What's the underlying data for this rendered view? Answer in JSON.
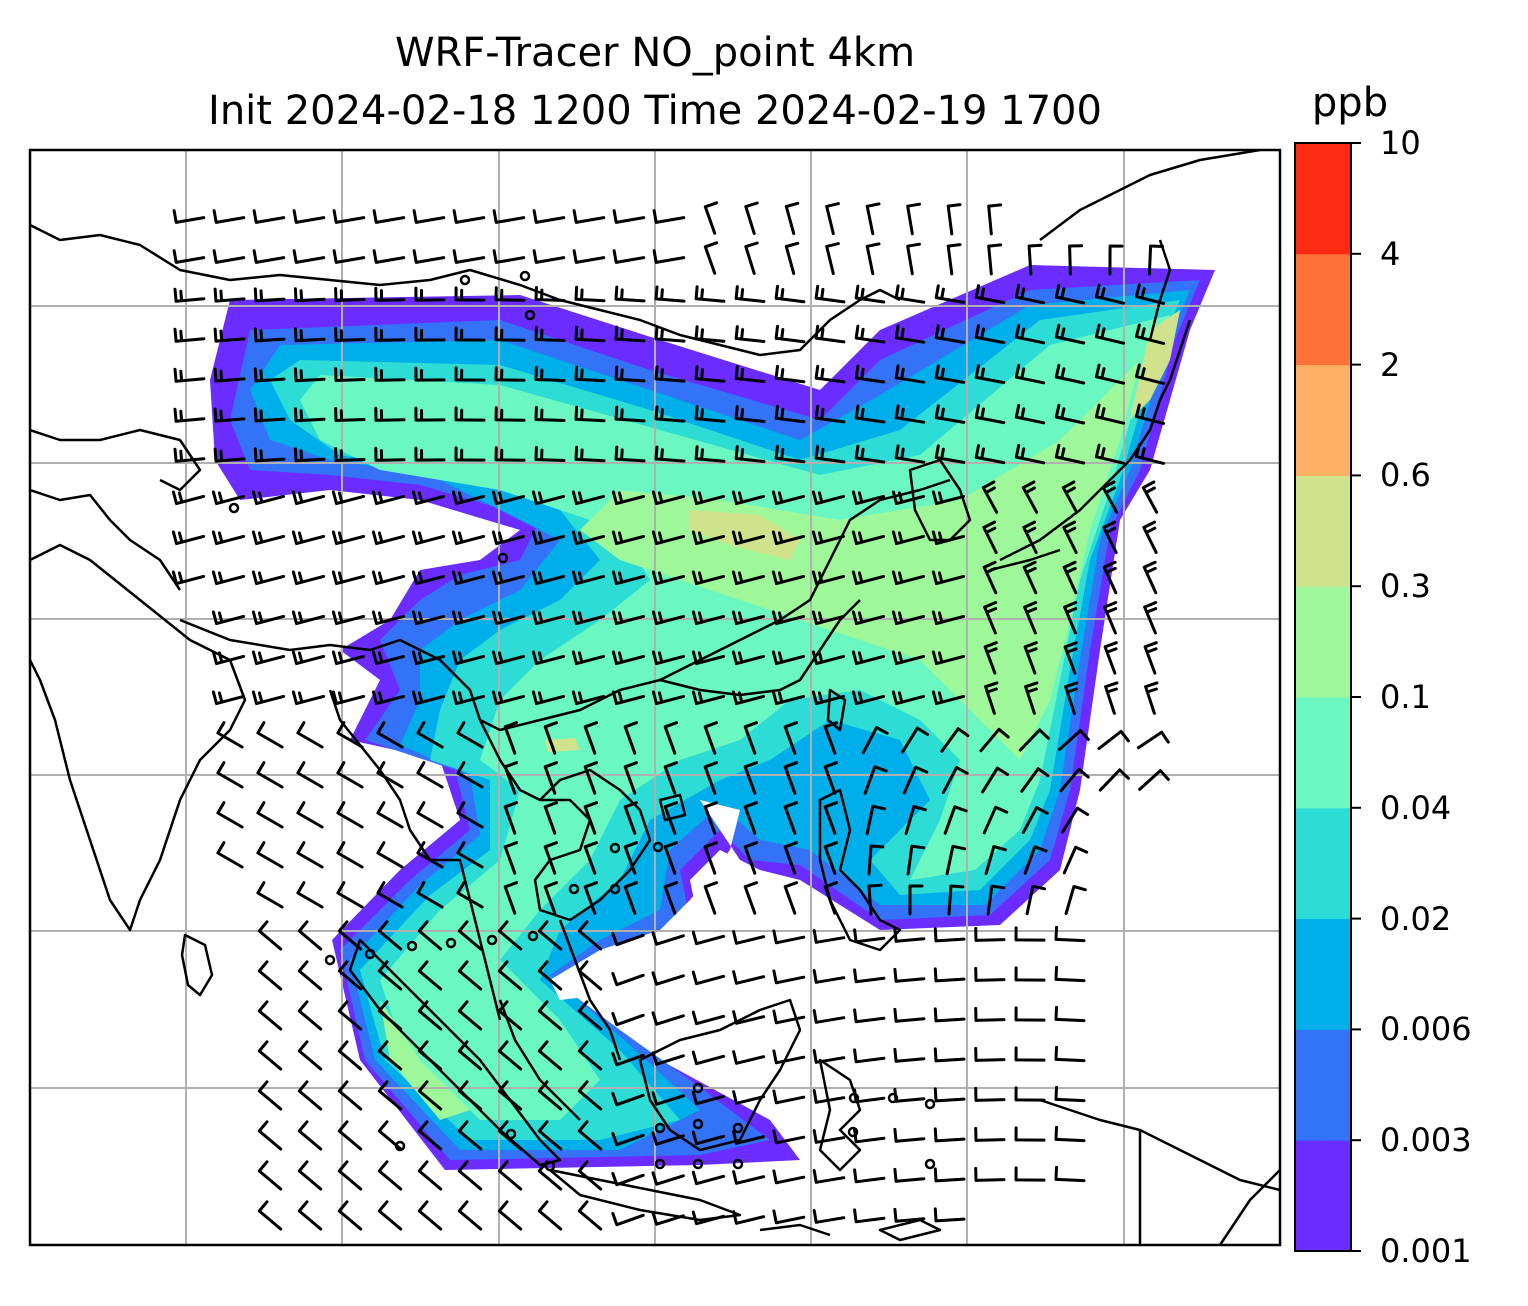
{
  "title": {
    "line1": "WRF-Tracer NO_point 4km",
    "line2": "Init 2024-02-18 1200 Time 2024-02-19 1700"
  },
  "colorbar": {
    "unit": "ppb",
    "levels": [
      "0.001",
      "0.003",
      "0.006",
      "0.02",
      "0.04",
      "0.1",
      "0.3",
      "0.6",
      "2",
      "4",
      "10"
    ],
    "colors": [
      "#6a2cff",
      "#3472f8",
      "#00aee9",
      "#2dddd5",
      "#6bf7c1",
      "#9ef89a",
      "#d0e28b",
      "#fdb063",
      "#ff7138",
      "#ff2a14"
    ]
  },
  "map": {
    "gridlines": true,
    "gridline_color": "#b0b0b0",
    "coastline_color": "#000000",
    "wind_barbs": true
  }
}
